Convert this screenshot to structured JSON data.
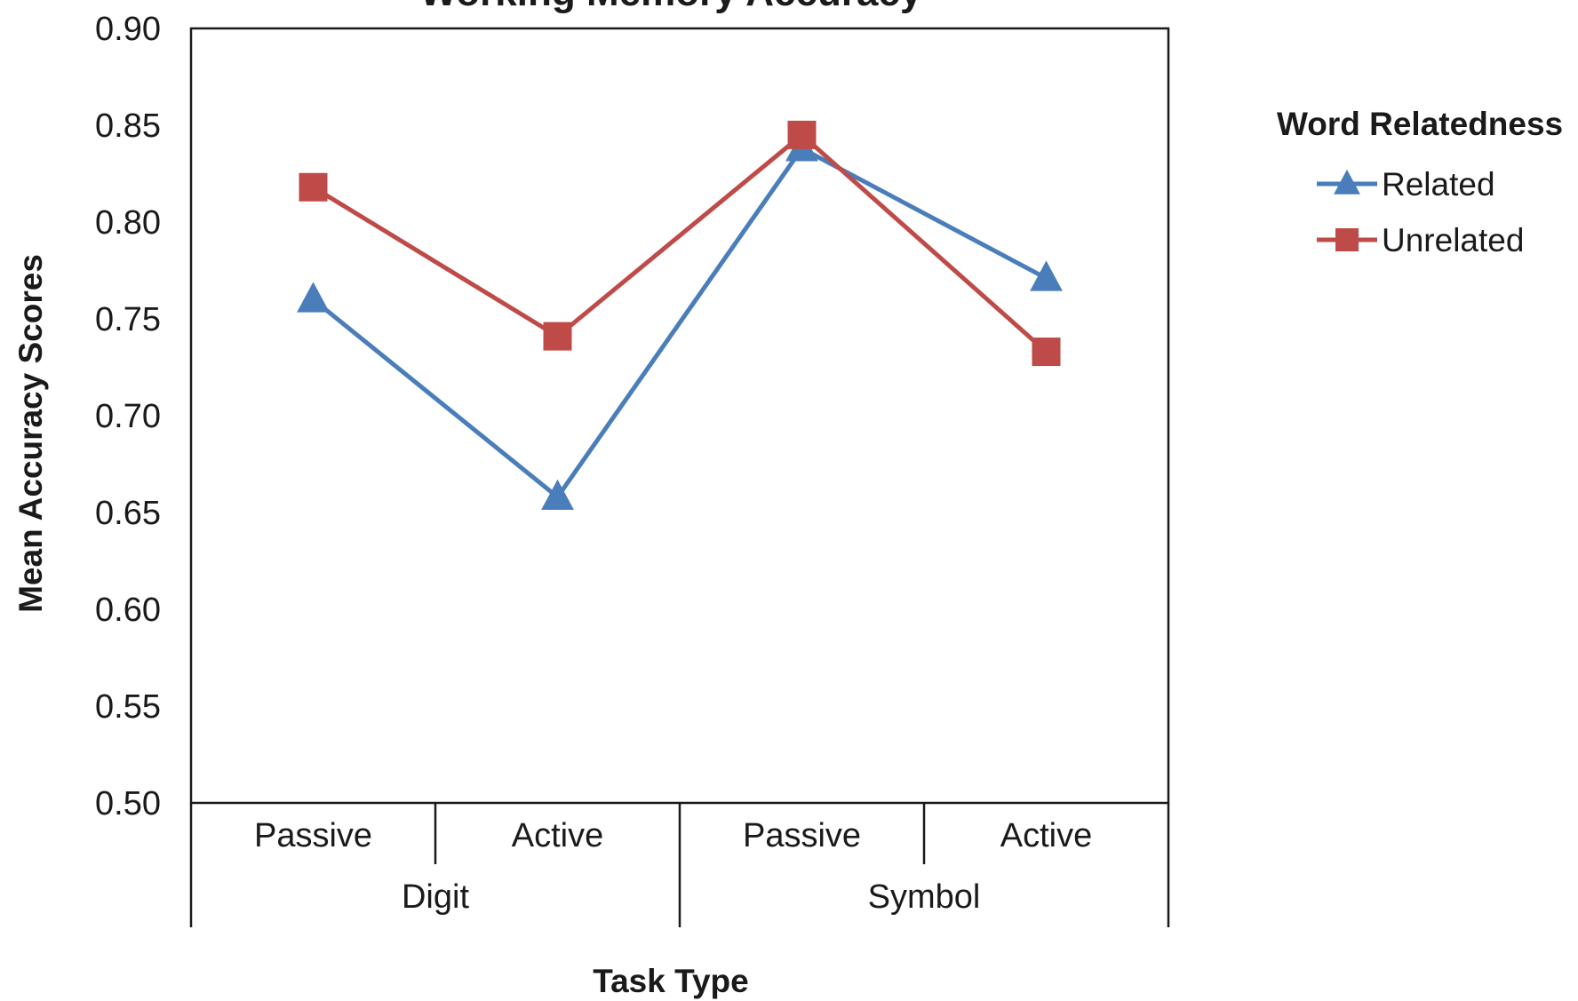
{
  "chart_data": {
    "type": "line",
    "title": "Working Memory Accuracy",
    "ylabel": "Mean Accuracy Scores",
    "xlabel": "Task Type",
    "ylim": [
      0.5,
      0.9
    ],
    "ytick_labels": [
      "0.50",
      "0.55",
      "0.60",
      "0.65",
      "0.70",
      "0.75",
      "0.80",
      "0.85",
      "0.90"
    ],
    "categories": [
      "Passive",
      "Active",
      "Passive",
      "Active"
    ],
    "groups": [
      {
        "label": "Digit",
        "span": [
          0,
          1
        ]
      },
      {
        "label": "Symbol",
        "span": [
          2,
          3
        ]
      }
    ],
    "series": [
      {
        "name": "Related",
        "values": [
          0.76,
          0.658,
          0.838,
          0.771
        ],
        "color": "#4a7ebb",
        "marker": "triangle"
      },
      {
        "name": "Unrelated",
        "values": [
          0.818,
          0.741,
          0.845,
          0.733
        ],
        "color": "#be4b48",
        "marker": "square"
      }
    ],
    "legend": {
      "title": "Word Relatedness",
      "position": "right"
    },
    "grid": false
  }
}
